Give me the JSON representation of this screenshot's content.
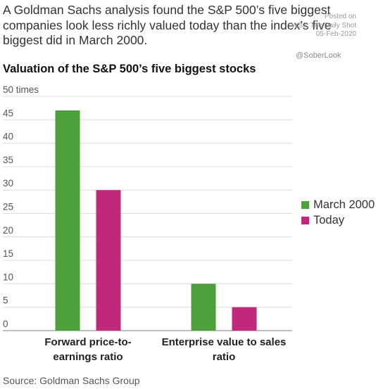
{
  "header": {
    "subtitle": "A Goldman Sachs analysis found the S&P 500’s five biggest companies look less richly valued today than the index’s five biggest did in March 2000.",
    "watermark_lines": [
      "Posted on",
      "WSJ: The Daily Shot",
      "05-Feb-2020"
    ],
    "handle": "@SoberLook"
  },
  "chart_data": {
    "type": "bar",
    "title": "Valuation of the S&P 500’s five biggest stocks",
    "categories": [
      "Forward price-to-earnings ratio",
      "Enterprise value to sales ratio"
    ],
    "category_label_lines": [
      [
        "Forward price-to-",
        "earnings ratio"
      ],
      [
        "Enterprise value to sales",
        "ratio"
      ]
    ],
    "series": [
      {
        "name": "March 2000",
        "values": [
          47,
          10
        ],
        "color": "#4e9f3d"
      },
      {
        "name": "Today",
        "values": [
          30,
          5
        ],
        "color": "#c0287a"
      }
    ],
    "ylim": [
      0,
      50
    ],
    "yticks": [
      0,
      5,
      10,
      15,
      20,
      25,
      30,
      35,
      40,
      45,
      50
    ],
    "ytick_labels": [
      "0",
      "5",
      "10",
      "15",
      "20",
      "25",
      "30",
      "35",
      "40",
      "45",
      "50 times"
    ],
    "grid": true,
    "legend_position": "right"
  },
  "footer": {
    "source": "Source: Goldman Sachs Group"
  }
}
